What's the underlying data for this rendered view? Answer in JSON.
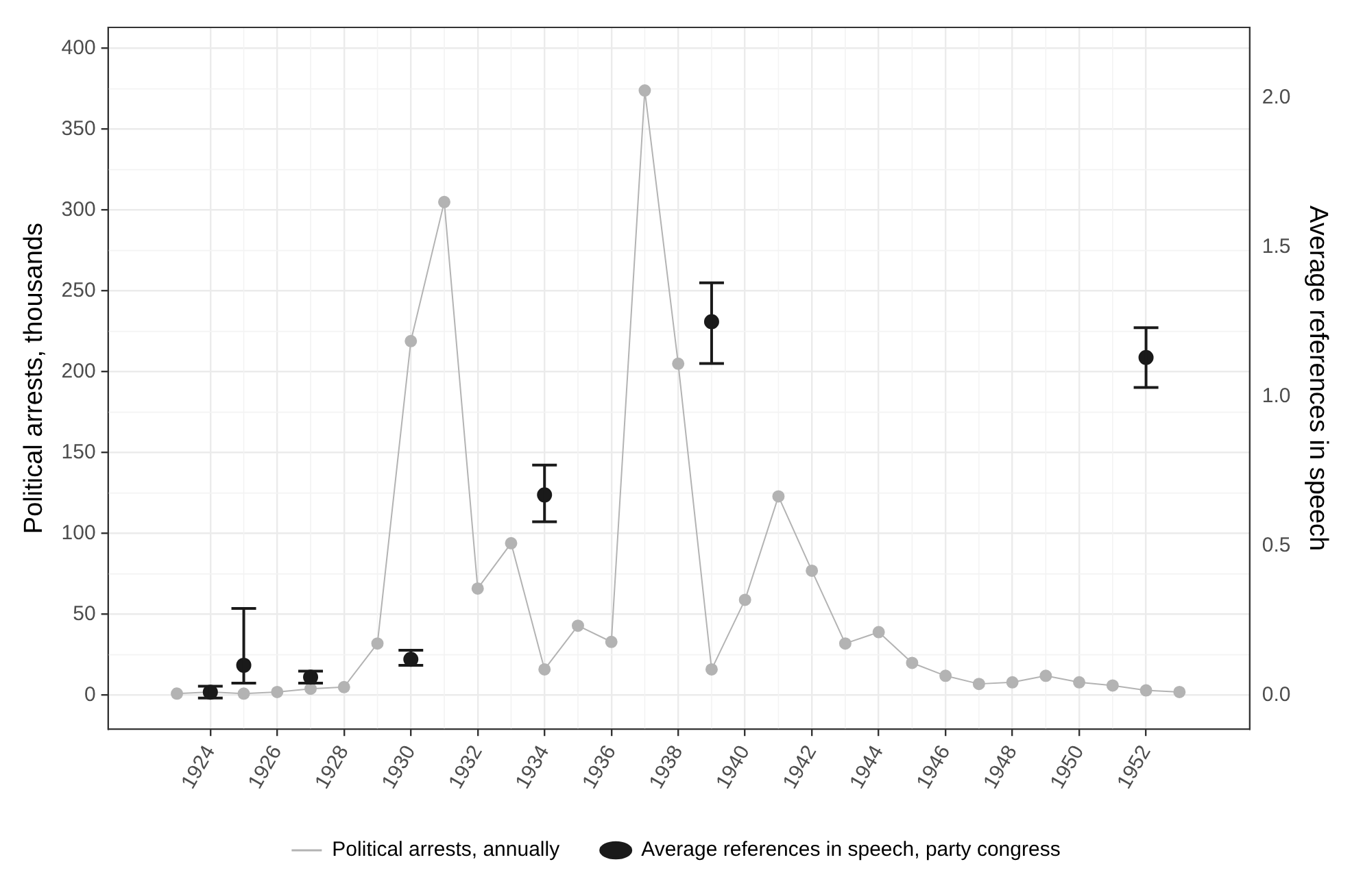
{
  "chart_data": {
    "type": "line",
    "xlabel": null,
    "ylabel": "Political arrests, thousands",
    "y2label": "Average references in speech",
    "xlim": [
      1920.94,
      1955.1
    ],
    "xticks": [
      1924,
      1926,
      1928,
      1930,
      1932,
      1934,
      1936,
      1938,
      1940,
      1942,
      1944,
      1946,
      1948,
      1950,
      1952
    ],
    "ylim": [
      -21,
      413
    ],
    "yticks": [
      0,
      50,
      100,
      150,
      200,
      250,
      300,
      350,
      400
    ],
    "y2lim": [
      -0.114,
      2.235
    ],
    "y2ticks": [
      {
        "value": 0,
        "label": "0.0"
      },
      {
        "value": 0.5,
        "label": "0.5"
      },
      {
        "value": 1,
        "label": "1.0"
      },
      {
        "value": 1.5,
        "label": "1.5"
      },
      {
        "value": 2,
        "label": "2.0"
      }
    ],
    "grid": true,
    "legend": "bottom",
    "marker": "circle",
    "series": [
      {
        "name": "Political arrests, annually",
        "color": "#b3b3b3",
        "x": [
          1923,
          1924,
          1925,
          1926,
          1927,
          1928,
          1929,
          1930,
          1931,
          1932,
          1933,
          1934,
          1935,
          1936,
          1937,
          1938,
          1939,
          1940,
          1941,
          1942,
          1943,
          1944,
          1945,
          1946,
          1947,
          1948,
          1949,
          1950,
          1951,
          1952,
          1953
        ],
        "values": [
          1,
          2,
          1,
          2,
          4,
          5,
          32,
          219,
          305,
          66,
          94,
          16,
          43,
          33,
          374,
          205,
          16,
          59,
          123,
          77,
          32,
          39,
          20,
          12,
          7,
          8,
          12,
          8,
          6,
          3,
          2
        ]
      },
      {
        "name": "Average references in speech, party congress",
        "type": "scatter",
        "axis": "y2",
        "color": "#1a1a1a",
        "x": [
          1924,
          1925,
          1927,
          1930,
          1934,
          1939,
          1952
        ],
        "values": [
          0.01,
          0.1,
          0.06,
          0.12,
          0.67,
          1.25,
          1.13
        ],
        "errors": [
          [
            -0.01,
            0.03
          ],
          [
            0.04,
            0.29
          ],
          [
            0.04,
            0.08
          ],
          [
            0.1,
            0.15
          ],
          [
            0.58,
            0.77
          ],
          [
            1.11,
            1.38
          ],
          [
            1.03,
            1.23
          ]
        ]
      }
    ]
  }
}
